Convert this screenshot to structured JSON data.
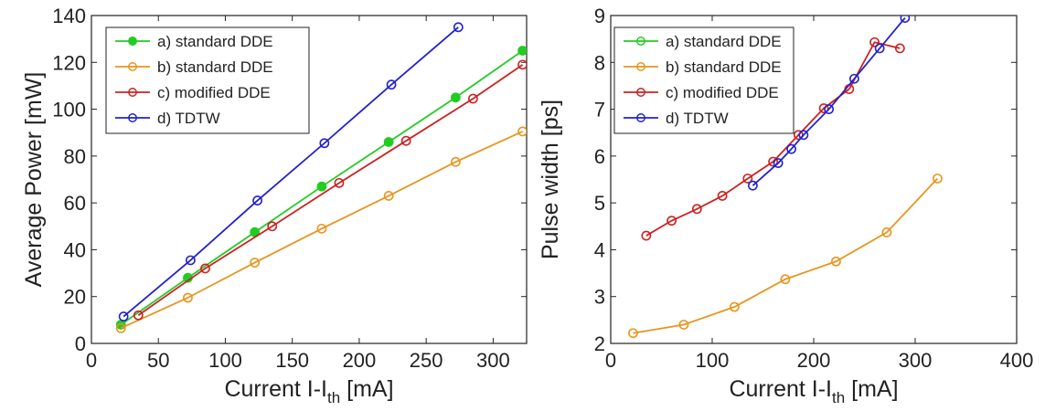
{
  "chart_data": [
    {
      "type": "line",
      "xlabel": {
        "main": "Current I-I",
        "sub": "th",
        "unit": " [mA]"
      },
      "ylabel": "Average Power [mW]",
      "xlim": [
        0,
        325
      ],
      "ylim": [
        0,
        140
      ],
      "xticks": [
        0,
        50,
        100,
        150,
        200,
        250,
        300
      ],
      "yticks": [
        0,
        20,
        40,
        60,
        80,
        100,
        120,
        140
      ],
      "legend_position": "top-left",
      "series": [
        {
          "name": "a) standard DDE",
          "color": "#22cc22",
          "marker": "filled",
          "x": [
            22,
            72,
            122,
            172,
            222,
            272,
            322
          ],
          "y": [
            8,
            28,
            47.5,
            67,
            86,
            105,
            125
          ]
        },
        {
          "name": "b) standard DDE",
          "color": "#e8951e",
          "marker": "open",
          "x": [
            22,
            72,
            122,
            172,
            222,
            272,
            322
          ],
          "y": [
            6.5,
            19.5,
            34.5,
            49,
            63,
            77.5,
            90.5
          ]
        },
        {
          "name": "c) modified DDE",
          "color": "#cc2222",
          "marker": "open",
          "x": [
            35,
            85,
            135,
            185,
            235,
            285,
            322
          ],
          "y": [
            12,
            32,
            50,
            68.5,
            86.5,
            104.5,
            119
          ]
        },
        {
          "name": "d) TDTW",
          "color": "#2222cc",
          "marker": "open",
          "x": [
            24,
            74,
            124,
            174,
            224,
            274
          ],
          "y": [
            11.5,
            35.5,
            61,
            85.5,
            110.5,
            135
          ]
        }
      ]
    },
    {
      "type": "line",
      "xlabel": {
        "main": "Current I-I",
        "sub": "th",
        "unit": " [mA]"
      },
      "ylabel": "Pulse width [ps]",
      "xlim": [
        0,
        400
      ],
      "ylim": [
        2,
        9
      ],
      "xticks": [
        0,
        100,
        200,
        300,
        400
      ],
      "yticks": [
        2,
        3,
        4,
        5,
        6,
        7,
        8,
        9
      ],
      "legend_position": "top-left",
      "series": [
        {
          "name": "a) standard DDE",
          "color": "#22cc22",
          "marker": "open",
          "x": [],
          "y": []
        },
        {
          "name": "b) standard DDE",
          "color": "#e8951e",
          "marker": "open",
          "x": [
            22,
            72,
            122,
            172,
            222,
            272,
            322
          ],
          "y": [
            2.22,
            2.4,
            2.78,
            3.37,
            3.75,
            4.37,
            5.52
          ]
        },
        {
          "name": "c) modified DDE",
          "color": "#cc2222",
          "marker": "open",
          "x": [
            35,
            60,
            85,
            110,
            135,
            160,
            185,
            210,
            235,
            260,
            285
          ],
          "y": [
            4.3,
            4.62,
            4.87,
            5.15,
            5.52,
            5.88,
            6.45,
            7.02,
            7.43,
            8.43,
            8.3
          ]
        },
        {
          "name": "d) TDTW",
          "color": "#2222cc",
          "marker": "open",
          "x": [
            140,
            165,
            178,
            190,
            215,
            240,
            265,
            290
          ],
          "y": [
            5.37,
            5.85,
            6.15,
            6.45,
            7.0,
            7.65,
            8.3,
            8.95
          ]
        }
      ]
    }
  ]
}
